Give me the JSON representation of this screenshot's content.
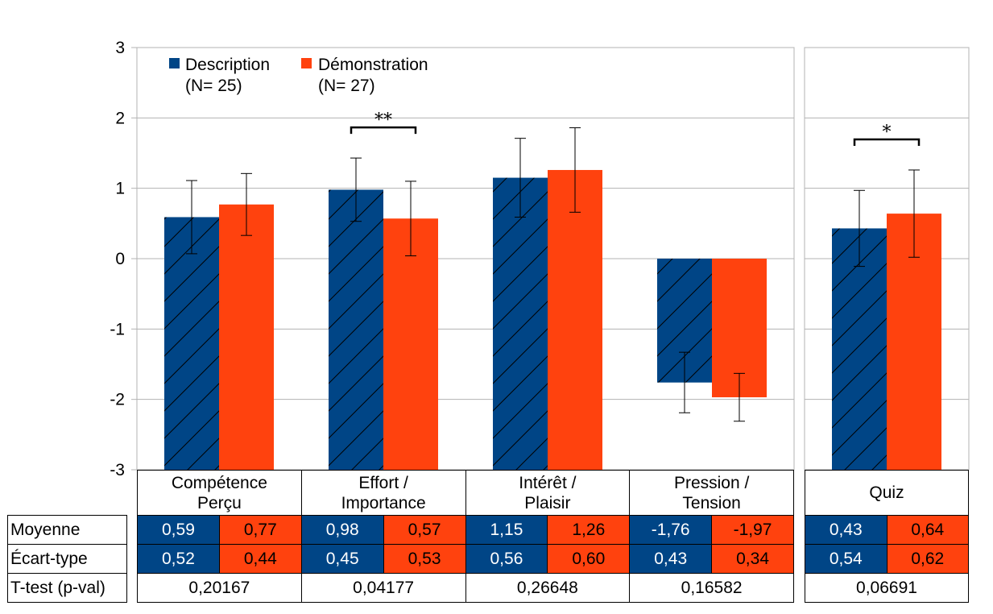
{
  "chart_data": {
    "type": "bar",
    "y_range": [
      -3,
      3
    ],
    "y_ticks": [
      "3",
      "2",
      "1",
      "0",
      "-1",
      "-2",
      "-3"
    ],
    "grid": "horizontal",
    "legend_position": "top-left",
    "legend": [
      {
        "name": "Description",
        "sub": "(N= 25)",
        "color": "#004586",
        "hatch": "diagonal"
      },
      {
        "name": "Démonstration",
        "sub": "(N= 27)",
        "color": "#ff420e"
      }
    ],
    "categories": [
      {
        "line1": "Compétence",
        "line2": "Perçu"
      },
      {
        "line1": "Effort /",
        "line2": "Importance"
      },
      {
        "line1": "Intérêt /",
        "line2": "Plaisir"
      },
      {
        "line1": "Pression /",
        "line2": "Tension"
      },
      {
        "line1": "Quiz",
        "line2": ""
      }
    ],
    "series": [
      {
        "name": "Description",
        "values": [
          0.59,
          0.98,
          1.15,
          -1.76,
          0.43
        ],
        "errors": [
          0.52,
          0.45,
          0.56,
          0.43,
          0.54
        ]
      },
      {
        "name": "Démonstration",
        "values": [
          0.77,
          0.57,
          1.26,
          -1.97,
          0.64
        ],
        "errors": [
          0.44,
          0.53,
          0.6,
          0.34,
          0.62
        ]
      }
    ],
    "significance": [
      {
        "category_index": 1,
        "label": "**"
      },
      {
        "category_index": 4,
        "label": "*"
      }
    ]
  },
  "table": {
    "row_labels": [
      "Moyenne",
      "Écart-type",
      "T-test (p-val)"
    ],
    "moyenne": [
      [
        "0,59",
        "0,77"
      ],
      [
        "0,98",
        "0,57"
      ],
      [
        "1,15",
        "1,26"
      ],
      [
        "-1,76",
        "-1,97"
      ],
      [
        "0,43",
        "0,64"
      ]
    ],
    "ecart": [
      [
        "0,52",
        "0,44"
      ],
      [
        "0,45",
        "0,53"
      ],
      [
        "0,56",
        "0,60"
      ],
      [
        "0,43",
        "0,34"
      ],
      [
        "0,54",
        "0,62"
      ]
    ],
    "pval": [
      "0,20167",
      "0,04177",
      "0,26648",
      "0,16582",
      "0,06691"
    ]
  }
}
